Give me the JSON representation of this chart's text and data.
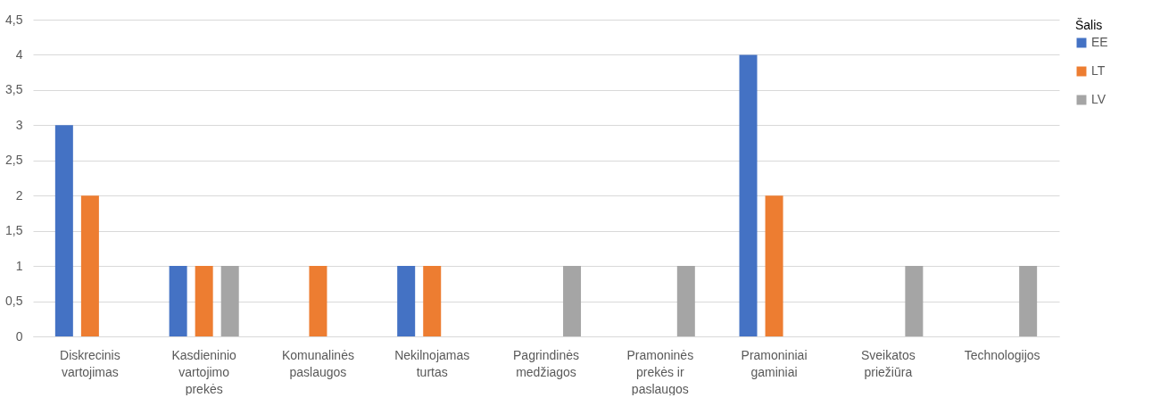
{
  "chart_data": {
    "type": "bar",
    "categories": [
      "Diskrecinis vartojimas",
      "Kasdieninio vartojimo prekės",
      "Komunalinės paslaugos",
      "Nekilnojamas turtas",
      "Pagrindinės medžiagos",
      "Pramoninės prekės ir paslaugos",
      "Pramoniniai gaminiai",
      "Sveikatos priežiūra",
      "Technologijos"
    ],
    "series": [
      {
        "name": "EE",
        "color": "#4472c4",
        "values": [
          3,
          1,
          null,
          1,
          null,
          null,
          4,
          null,
          null
        ]
      },
      {
        "name": "LT",
        "color": "#ed7d31",
        "values": [
          2,
          1,
          1,
          1,
          null,
          null,
          2,
          null,
          null
        ]
      },
      {
        "name": "LV",
        "color": "#a5a5a5",
        "values": [
          null,
          1,
          null,
          null,
          1,
          1,
          null,
          1,
          1
        ]
      }
    ],
    "legend_title": "Šalis",
    "legend": "right",
    "grid": "y",
    "ylim": [
      0,
      4.5
    ],
    "yticks": [
      0,
      {
        "value": 0.5,
        "label": "0,5"
      },
      1,
      {
        "value": 1.5,
        "label": "1,5"
      },
      2,
      {
        "value": 2.5,
        "label": "2,5"
      },
      3,
      {
        "value": 3.5,
        "label": "3,5"
      },
      4,
      {
        "value": 4.5,
        "label": "4,5"
      }
    ]
  }
}
